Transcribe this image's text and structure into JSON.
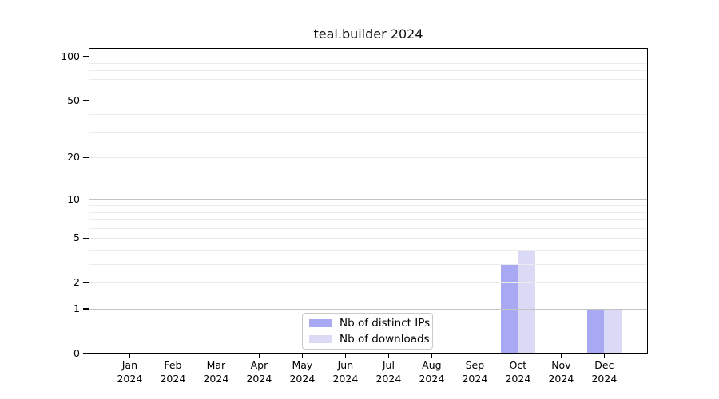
{
  "chart_data": {
    "type": "bar",
    "title": "teal.builder 2024",
    "categories": [
      "Jan",
      "Feb",
      "Mar",
      "Apr",
      "May",
      "Jun",
      "Jul",
      "Aug",
      "Sep",
      "Oct",
      "Nov",
      "Dec"
    ],
    "year_label": "2024",
    "series": [
      {
        "name": "Nb of distinct IPs",
        "color": "#a9a9f3",
        "values": [
          0,
          0,
          0,
          0,
          0,
          0,
          0,
          0,
          0,
          3,
          0,
          1
        ]
      },
      {
        "name": "Nb of downloads",
        "color": "#dadaf6",
        "values": [
          0,
          0,
          0,
          0,
          0,
          0,
          0,
          0,
          0,
          4,
          0,
          1
        ]
      }
    ],
    "y_ticks": [
      100,
      50,
      20,
      10,
      5,
      2,
      1,
      0
    ],
    "y_scale": "log10(1+x)",
    "ylim": [
      0,
      115
    ],
    "major_gridline_values": [
      1,
      10,
      100
    ],
    "minor_gridline_values": [
      2,
      3,
      4,
      5,
      6,
      7,
      8,
      9,
      20,
      30,
      40,
      50,
      60,
      70,
      80,
      90
    ],
    "grid": true,
    "grid_on_top_of_bars": true,
    "legend_position": "bottom-center"
  }
}
